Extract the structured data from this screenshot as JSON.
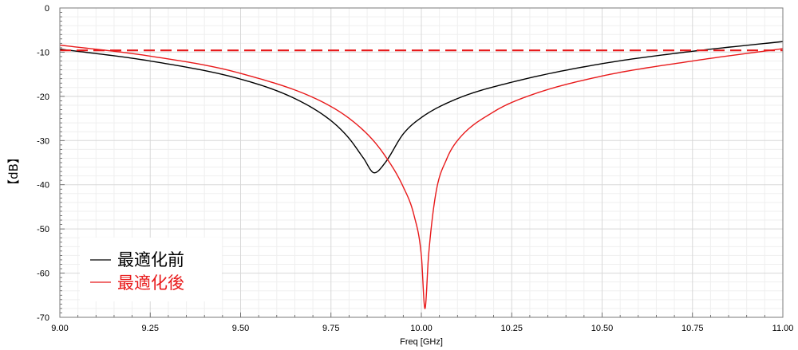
{
  "chart_data": {
    "type": "line",
    "title": "",
    "xlabel": "Freq [GHz]",
    "ylabel": "【dB】",
    "xlim": [
      9.0,
      11.0
    ],
    "ylim": [
      -70,
      0
    ],
    "x_ticks": [
      "9.00",
      "9.25",
      "9.50",
      "9.75",
      "10.00",
      "10.25",
      "10.50",
      "10.75",
      "11.00"
    ],
    "y_ticks": [
      "0",
      "-10",
      "-20",
      "-30",
      "-40",
      "-50",
      "-60",
      "-70"
    ],
    "grid": true,
    "legend_position": "bottom-left",
    "series": [
      {
        "name": "最適化前",
        "color": "#000000",
        "style": "solid",
        "x": [
          9.0,
          9.25,
          9.5,
          9.65,
          9.75,
          9.8,
          9.84,
          9.87,
          9.9,
          9.95,
          10.0,
          10.1,
          10.25,
          10.5,
          10.75,
          11.0
        ],
        "y": [
          -9.3,
          -12.0,
          -16.1,
          -20.5,
          -25.5,
          -29.5,
          -34.0,
          -37.3,
          -35.0,
          -28.5,
          -24.8,
          -20.5,
          -16.8,
          -12.6,
          -9.8,
          -7.6
        ]
      },
      {
        "name": "最適化後",
        "color": "#e8191a",
        "style": "solid",
        "x": [
          9.0,
          9.25,
          9.5,
          9.75,
          9.85,
          9.9,
          9.95,
          9.98,
          10.0,
          10.01,
          10.02,
          10.04,
          10.07,
          10.1,
          10.2,
          10.3,
          10.5,
          10.75,
          11.0
        ],
        "y": [
          -8.4,
          -10.9,
          -14.8,
          -22.3,
          -28.5,
          -33.5,
          -40.5,
          -47.0,
          -56.0,
          -68.0,
          -56.0,
          -42.0,
          -34.2,
          -30.0,
          -23.5,
          -19.8,
          -15.4,
          -12.0,
          -9.2
        ]
      },
      {
        "color": "#e8191a",
        "style": "dashed",
        "x": [
          9.0,
          11.0
        ],
        "y": [
          -9.6,
          -9.6
        ]
      }
    ]
  }
}
